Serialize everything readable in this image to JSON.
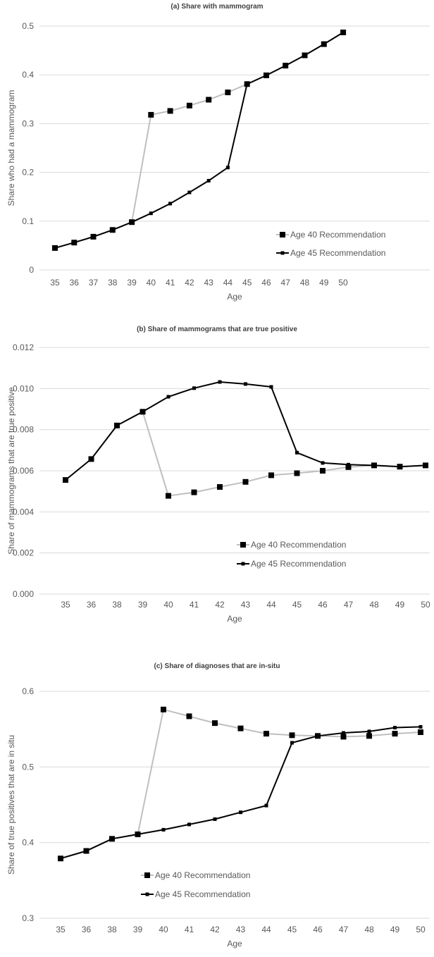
{
  "chart_data": [
    {
      "type": "line",
      "title": "(a) Share with mammogram",
      "xlabel": "Age",
      "ylabel": "Share who had a mammogram",
      "categories": [
        "35",
        "36",
        "37",
        "38",
        "39",
        "40",
        "41",
        "42",
        "43",
        "44",
        "45",
        "46",
        "47",
        "48",
        "49",
        "50"
      ],
      "ylim": [
        0,
        0.5
      ],
      "yticks": [
        "0",
        "0.1",
        "0.2",
        "0.3",
        "0.4",
        "0.5"
      ],
      "grid": true,
      "legend": "center-right",
      "series": [
        {
          "name": "Age 40 Recommendation",
          "color": "#bfbfbf",
          "marker": "square-large",
          "values": [
            0.045,
            0.056,
            0.068,
            0.082,
            0.098,
            0.318,
            0.326,
            0.337,
            0.349,
            0.364,
            0.381,
            0.399,
            0.419,
            0.44,
            0.463,
            0.487
          ]
        },
        {
          "name": "Age 45 Recommendation",
          "color": "#000000",
          "marker": "square-small",
          "values": [
            0.045,
            0.056,
            0.068,
            0.082,
            0.098,
            0.116,
            0.136,
            0.159,
            0.183,
            0.21,
            0.381,
            0.399,
            0.419,
            0.44,
            0.463,
            0.487
          ]
        }
      ]
    },
    {
      "type": "line",
      "title": "(b) Share of mammograms that are true positive",
      "xlabel": "Age",
      "ylabel": "Share of mammograms that are true positive",
      "categories": [
        "35",
        "36",
        "38",
        "39",
        "40",
        "41",
        "42",
        "43",
        "44",
        "45",
        "46",
        "47",
        "48",
        "49",
        "50"
      ],
      "ylim": [
        0,
        0.012
      ],
      "yticks": [
        "0.000",
        "0.002",
        "0.004",
        "0.006",
        "0.008",
        "0.010",
        "0.012"
      ],
      "grid": true,
      "legend": "center-right",
      "series": [
        {
          "name": "Age 40 Recommendation",
          "color": "#bfbfbf",
          "marker": "square-large",
          "values": [
            0.00555,
            0.00657,
            0.0082,
            0.00887,
            0.00478,
            0.00495,
            0.00521,
            0.00546,
            0.00578,
            0.00588,
            0.006,
            0.00618,
            0.00626,
            0.0062,
            0.00626
          ]
        },
        {
          "name": "Age 45 Recommendation",
          "color": "#000000",
          "marker": "square-small",
          "values": [
            0.00555,
            0.00657,
            0.0082,
            0.00887,
            0.0096,
            0.01002,
            0.01032,
            0.01022,
            0.01008,
            0.00688,
            0.00638,
            0.0063,
            0.00626,
            0.0062,
            0.00626
          ]
        }
      ]
    },
    {
      "type": "line",
      "title": "(c) Share of diagnoses that are in-situ",
      "xlabel": "Age",
      "ylabel": "Share of true positives that are in situ",
      "categories": [
        "35",
        "36",
        "38",
        "39",
        "40",
        "41",
        "42",
        "43",
        "44",
        "45",
        "46",
        "47",
        "48",
        "49",
        "50"
      ],
      "ylim": [
        0.3,
        0.6
      ],
      "yticks": [
        "0.3",
        "0.4",
        "0.5",
        "0.6"
      ],
      "grid": true,
      "legend": "bottom-left",
      "series": [
        {
          "name": "Age 40 Recommendation",
          "color": "#bfbfbf",
          "marker": "square-large",
          "values": [
            0.379,
            0.389,
            0.405,
            0.411,
            0.576,
            0.567,
            0.558,
            0.551,
            0.544,
            0.542,
            0.541,
            0.54,
            0.541,
            0.544,
            0.546
          ]
        },
        {
          "name": "Age 45 Recommendation",
          "color": "#000000",
          "marker": "square-small",
          "values": [
            0.379,
            0.389,
            0.405,
            0.411,
            0.417,
            0.424,
            0.431,
            0.44,
            0.449,
            0.532,
            0.541,
            0.545,
            0.547,
            0.552,
            0.553
          ]
        }
      ]
    }
  ]
}
